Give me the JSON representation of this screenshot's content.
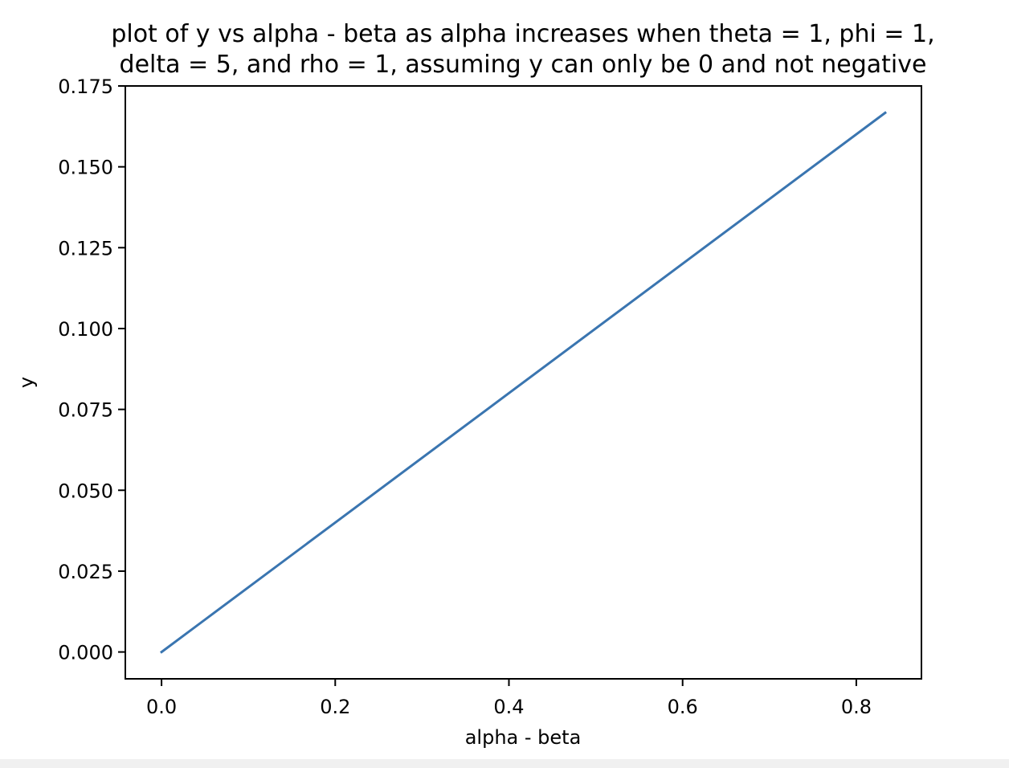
{
  "chart_data": {
    "type": "line",
    "title_line1": "plot of y vs alpha - beta as alpha increases when theta = 1, phi = 1,",
    "title_line2": "delta = 5, and rho = 1, assuming y can only be 0 and not negative",
    "xlabel": "alpha - beta",
    "ylabel": "y",
    "xlim": [
      -0.0417,
      0.875
    ],
    "ylim": [
      -0.0083,
      0.175
    ],
    "xticks": [
      0.0,
      0.2,
      0.4,
      0.6,
      0.8
    ],
    "xtick_labels": [
      "0.0",
      "0.2",
      "0.4",
      "0.6",
      "0.8"
    ],
    "yticks": [
      0.0,
      0.025,
      0.05,
      0.075,
      0.1,
      0.125,
      0.15,
      0.175
    ],
    "ytick_labels": [
      "0.000",
      "0.025",
      "0.050",
      "0.075",
      "0.100",
      "0.125",
      "0.150",
      "0.175"
    ],
    "grid": false,
    "series": [
      {
        "color": "#3a75b0",
        "x": [
          0.0,
          0.8333
        ],
        "y": [
          0.0,
          0.1667
        ]
      }
    ]
  }
}
